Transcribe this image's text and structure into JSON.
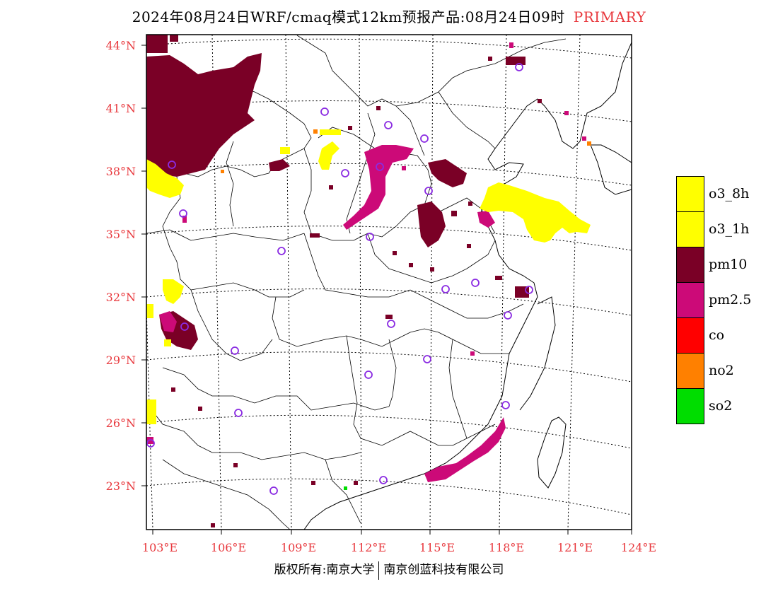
{
  "title": {
    "text": "2024年08月24日WRF/cmaq模式12km预报产品:08月24日09时",
    "tag": "PRIMARY"
  },
  "lat_labels": [
    "44°N",
    "41°N",
    "38°N",
    "35°N",
    "32°N",
    "29°N",
    "26°N",
    "23°N"
  ],
  "lon_labels": [
    "103°E",
    "106°E",
    "109°E",
    "112°E",
    "115°E",
    "118°E",
    "121°E",
    "124°E"
  ],
  "legend": [
    {
      "label": "o3_8h",
      "color": "#ffff00"
    },
    {
      "label": "o3_1h",
      "color": "#ffff00"
    },
    {
      "label": "pm10",
      "color": "#7a0026"
    },
    {
      "label": "pm2.5",
      "color": "#cc0a78"
    },
    {
      "label": "co",
      "color": "#ff0000"
    },
    {
      "label": "no2",
      "color": "#ff8000"
    },
    {
      "label": "so2",
      "color": "#00dd00"
    }
  ],
  "footer": {
    "left": "版权所有:南京大学",
    "right": "南京创蓝科技有限公司"
  }
}
